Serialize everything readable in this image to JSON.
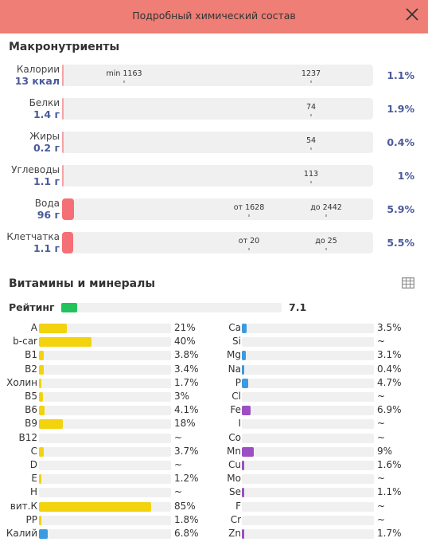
{
  "header": {
    "title": "Подробный химический состав",
    "close_icon": "close-icon"
  },
  "macros": {
    "title": "Макронутриенты",
    "items": [
      {
        "label": "Калории",
        "value": "13 ккал",
        "fill": 0.011,
        "pct": "1.1%",
        "markers": [
          {
            "text": "min 1163",
            "pos": 0.2
          },
          {
            "text": "1237",
            "pos": 0.8
          }
        ]
      },
      {
        "label": "Белки",
        "value": "1.4 г",
        "fill": 0.019,
        "pct": "1.9%",
        "markers": [
          {
            "text": "74",
            "pos": 0.8
          }
        ]
      },
      {
        "label": "Жиры",
        "value": "0.2 г",
        "fill": 0.004,
        "pct": "0.4%",
        "markers": [
          {
            "text": "54",
            "pos": 0.8
          }
        ]
      },
      {
        "label": "Углеводы",
        "value": "1.1 г",
        "fill": 0.01,
        "pct": "1%",
        "markers": [
          {
            "text": "113",
            "pos": 0.8
          }
        ]
      },
      {
        "label": "Вода",
        "value": "96 г",
        "fill": 0.038,
        "pct": "5.9%",
        "markers": [
          {
            "text": "от 1628",
            "pos": 0.6
          },
          {
            "text": "до 2442",
            "pos": 0.85
          }
        ]
      },
      {
        "label": "Клетчатка",
        "value": "1.1 г",
        "fill": 0.033,
        "pct": "5.5%",
        "markers": [
          {
            "text": "от 20",
            "pos": 0.6
          },
          {
            "text": "до 25",
            "pos": 0.85
          }
        ]
      }
    ]
  },
  "vitamins": {
    "title": "Витамины и минералы",
    "table_icon": "table-icon",
    "rating_label": "Рейтинг",
    "rating_value": "7.1",
    "rating_fill": 0.071,
    "rating_color": "#22c35a",
    "left": [
      {
        "name": "A",
        "pct": "21%",
        "fill": 0.21,
        "color": "#f2d30e"
      },
      {
        "name": "b-car",
        "pct": "40%",
        "fill": 0.4,
        "color": "#f2d30e"
      },
      {
        "name": "B1",
        "pct": "3.8%",
        "fill": 0.038,
        "color": "#f2d30e"
      },
      {
        "name": "B2",
        "pct": "3.4%",
        "fill": 0.034,
        "color": "#f2d30e"
      },
      {
        "name": "Холин",
        "pct": "1.7%",
        "fill": 0.017,
        "color": "#f2d30e"
      },
      {
        "name": "B5",
        "pct": "3%",
        "fill": 0.03,
        "color": "#f2d30e"
      },
      {
        "name": "B6",
        "pct": "4.1%",
        "fill": 0.041,
        "color": "#f2d30e"
      },
      {
        "name": "B9",
        "pct": "18%",
        "fill": 0.18,
        "color": "#f2d30e"
      },
      {
        "name": "B12",
        "pct": "~",
        "fill": 0,
        "color": "#f2d30e"
      },
      {
        "name": "C",
        "pct": "3.7%",
        "fill": 0.037,
        "color": "#f2d30e"
      },
      {
        "name": "D",
        "pct": "~",
        "fill": 0,
        "color": "#f2d30e"
      },
      {
        "name": "E",
        "pct": "1.2%",
        "fill": 0.012,
        "color": "#f2d30e"
      },
      {
        "name": "H",
        "pct": "~",
        "fill": 0,
        "color": "#f2d30e"
      },
      {
        "name": "вит.К",
        "pct": "85%",
        "fill": 0.85,
        "color": "#f2d30e"
      },
      {
        "name": "PP",
        "pct": "1.8%",
        "fill": 0.018,
        "color": "#f2d30e"
      },
      {
        "name": "Калий",
        "pct": "6.8%",
        "fill": 0.068,
        "color": "#3a9be3"
      }
    ],
    "right": [
      {
        "name": "Ca",
        "pct": "3.5%",
        "fill": 0.035,
        "color": "#3a9be3"
      },
      {
        "name": "Si",
        "pct": "~",
        "fill": 0,
        "color": "#3a9be3"
      },
      {
        "name": "Mg",
        "pct": "3.1%",
        "fill": 0.031,
        "color": "#3a9be3"
      },
      {
        "name": "Na",
        "pct": "0.4%",
        "fill": 0.004,
        "color": "#3a9be3"
      },
      {
        "name": "P",
        "pct": "4.7%",
        "fill": 0.047,
        "color": "#3a9be3"
      },
      {
        "name": "Cl",
        "pct": "~",
        "fill": 0,
        "color": "#3a9be3"
      },
      {
        "name": "Fe",
        "pct": "6.9%",
        "fill": 0.069,
        "color": "#9b4fc2"
      },
      {
        "name": "I",
        "pct": "~",
        "fill": 0,
        "color": "#9b4fc2"
      },
      {
        "name": "Co",
        "pct": "~",
        "fill": 0,
        "color": "#9b4fc2"
      },
      {
        "name": "Mn",
        "pct": "9%",
        "fill": 0.09,
        "color": "#9b4fc2"
      },
      {
        "name": "Cu",
        "pct": "1.6%",
        "fill": 0.016,
        "color": "#9b4fc2"
      },
      {
        "name": "Mo",
        "pct": "~",
        "fill": 0,
        "color": "#9b4fc2"
      },
      {
        "name": "Se",
        "pct": "1.1%",
        "fill": 0.011,
        "color": "#9b4fc2"
      },
      {
        "name": "F",
        "pct": "~",
        "fill": 0,
        "color": "#9b4fc2"
      },
      {
        "name": "Cr",
        "pct": "~",
        "fill": 0,
        "color": "#9b4fc2"
      },
      {
        "name": "Zn",
        "pct": "1.7%",
        "fill": 0.017,
        "color": "#9b4fc2"
      }
    ]
  }
}
